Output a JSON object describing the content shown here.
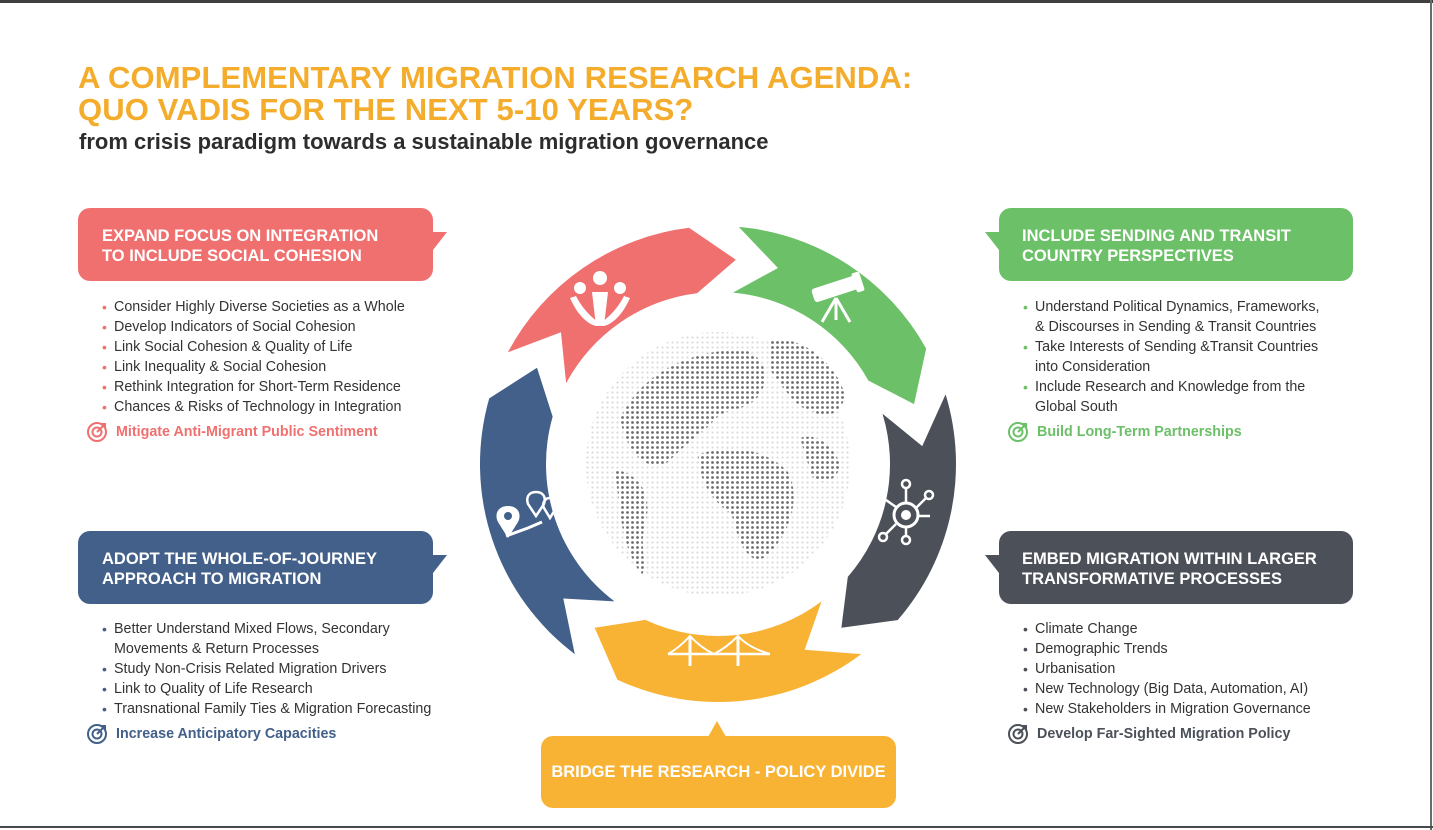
{
  "header": {
    "title_line1": "A COMPLEMENTARY MIGRATION RESEARCH AGENDA:",
    "title_line2": "QUO VADIS FOR THE NEXT 5-10 YEARS?",
    "subtitle": "from crisis paradigm towards a sustainable migration governance"
  },
  "colors": {
    "red": "#f07070",
    "green": "#6cc068",
    "blue": "#426089",
    "dark": "#4b5059",
    "orange": "#f8b234",
    "title": "#f4ac2c"
  },
  "sections": {
    "integration": {
      "title_line1": "EXPAND FOCUS ON INTEGRATION",
      "title_line2": "TO INCLUDE SOCIAL COHESION",
      "items": [
        "Consider Highly Diverse Societies as a Whole",
        "Develop Indicators of Social Cohesion",
        "Link Social Cohesion & Quality of Life",
        "Link Inequality & Social Cohesion",
        "Rethink Integration for Short-Term Residence",
        "Chances & Risks of Technology in Integration"
      ],
      "goal": "Mitigate Anti-Migrant Public Sentiment",
      "icon": "people-icon"
    },
    "sending": {
      "title_line1": "INCLUDE SENDING AND TRANSIT",
      "title_line2": "COUNTRY PERSPECTIVES",
      "items": [
        "Understand Political Dynamics, Frameworks,",
        "& Discourses in Sending & Transit Countries",
        "Take Interests of Sending &Transit Countries",
        "into Consideration",
        "Include Research and Knowledge from the",
        "Global South"
      ],
      "goal": "Build Long-Term Partnerships",
      "icon": "telescope-icon"
    },
    "journey": {
      "title_line1": "ADOPT THE WHOLE-OF-JOURNEY",
      "title_line2": "APPROACH TO MIGRATION",
      "items": [
        "Better Understand Mixed Flows, Secondary",
        "Movements & Return Processes",
        "Study Non-Crisis Related Migration Drivers",
        "Link to Quality of Life Research",
        "Transnational Family Ties & Migration Forecasting"
      ],
      "goal": "Increase Anticipatory Capacities",
      "icon": "map-pins-icon"
    },
    "embed": {
      "title_line1": "EMBED MIGRATION WITHIN LARGER",
      "title_line2": "TRANSFORMATIVE PROCESSES",
      "items": [
        "Climate Change",
        "Demographic Trends",
        "Urbanisation",
        "New Technology (Big Data, Automation, AI)",
        "New Stakeholders in Migration Governance"
      ],
      "goal": "Develop Far-Sighted Migration Policy",
      "icon": "network-icon"
    },
    "bridge": {
      "title": "BRIDGE THE RESEARCH - POLICY DIVIDE",
      "icon": "bridge-icon"
    }
  },
  "center_icon": "globe-icon"
}
